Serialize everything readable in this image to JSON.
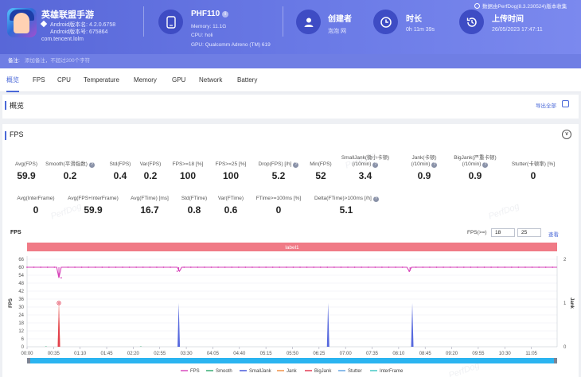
{
  "header": {
    "app_name": "英雄联盟手游",
    "android_version": "Android版本名: 4.2.0.6758",
    "android_code": "Android版本号: 675864",
    "package": "com.tencent.lolm",
    "device_name": "PHF110",
    "device_info_icon": "i",
    "memory": "Memory: 11.1G",
    "cpu": "CPU: holi",
    "gpu": "GPU: Qualcomm Adreno (TM) 619",
    "creator_label": "创建者",
    "creator_value": "泡泡 网",
    "duration_label": "时长",
    "duration_value": "0h 11m 39s",
    "upload_label": "上传时间",
    "upload_value": "26/05/2023 17:47:11",
    "report_note": "数据由PerfDog(8.3.230524)版本收集",
    "accent": "#5867d8"
  },
  "note_bar": {
    "label": "备注:",
    "placeholder": "添加备注，不超过200个字符"
  },
  "tabs": [
    {
      "label": "概览"
    },
    {
      "label": "FPS"
    },
    {
      "label": "CPU"
    },
    {
      "label": "Temperature"
    },
    {
      "label": "Memory"
    },
    {
      "label": "GPU"
    },
    {
      "label": "Network"
    },
    {
      "label": "Battery"
    }
  ],
  "overview": {
    "title": "概览",
    "export_label": "导出全部"
  },
  "fps": {
    "title": "FPS",
    "collapse_icon": "∨",
    "row1": [
      {
        "label": "Avg(FPS)",
        "value": "59.9"
      },
      {
        "label": "Smooth(平滑指数)",
        "value": "0.2",
        "help": true
      },
      {
        "label": "Std(FPS)",
        "value": "0.4"
      },
      {
        "label": "Var(FPS)",
        "value": "0.2"
      },
      {
        "label": "FPS>=18 [%]",
        "value": "100"
      },
      {
        "label": "FPS>=25 [%]",
        "value": "100"
      },
      {
        "label": "Drop(FPS) [/h]",
        "value": "5.2",
        "help": true
      },
      {
        "label": "Min(FPS)",
        "value": "52"
      },
      {
        "label": "SmallJank(微小卡顿)",
        "label2": "(/10min)",
        "value": "3.4",
        "help": true
      },
      {
        "label": "Jank(卡顿)",
        "label2": "(/10min)",
        "value": "0.9",
        "help": true
      },
      {
        "label": "BigJank(严重卡顿)",
        "label2": "(/10min)",
        "value": "0.9",
        "help": true
      },
      {
        "label": "Stutter(卡顿率) [%]",
        "value": "0"
      }
    ],
    "row2": [
      {
        "label": "Avg(InterFrame)",
        "value": "0"
      },
      {
        "label": "Avg(FPS+InterFrame)",
        "value": "59.9"
      },
      {
        "label": "Avg(FTime) [ms]",
        "value": "16.7"
      },
      {
        "label": "Std(FTime)",
        "value": "0.8"
      },
      {
        "label": "Var(FTime)",
        "value": "0.6"
      },
      {
        "label": "FTime>=100ms [%]",
        "value": "0"
      },
      {
        "label": "Delta(FTime)>100ms [/h]",
        "value": "5.1",
        "help": true
      }
    ],
    "threshold_label": "FPS(>=)",
    "threshold_1": "18",
    "threshold_2": "25",
    "threshold_link": "查看",
    "watermark": "PerfDog"
  },
  "chart_data": {
    "type": "line",
    "title": "FPS",
    "band_label": "label1",
    "y_left_label": "FPS",
    "y_right_label": "Jank",
    "y_left_ticks": [
      0,
      6,
      12,
      18,
      24,
      30,
      36,
      42,
      48,
      54,
      60,
      66
    ],
    "y_left_range": [
      0,
      66
    ],
    "y_right_ticks": [
      0,
      1,
      2
    ],
    "y_right_range": [
      0,
      2
    ],
    "x_ticks": [
      "00:00",
      "00:35",
      "01:10",
      "01:45",
      "02:20",
      "02:55",
      "03:30",
      "04:05",
      "04:40",
      "05:15",
      "05:50",
      "06:25",
      "07:00",
      "07:35",
      "08:10",
      "08:45",
      "09:20",
      "09:55",
      "10:30",
      "11:05"
    ],
    "x_range_seconds": [
      0,
      699
    ],
    "grid": true,
    "legend_position": "bottom",
    "series": [
      {
        "name": "FPS",
        "color": "#d63fb8",
        "axis": "left",
        "base": 60,
        "dips": [
          [
            42,
            52
          ],
          [
            200,
            57
          ],
          [
            505,
            57
          ]
        ]
      },
      {
        "name": "Smooth",
        "color": "#2aa86a",
        "axis": "left",
        "spikes": [
          [
            25,
            0.4
          ],
          [
            150,
            0.4
          ]
        ]
      },
      {
        "name": "SmallJank",
        "color": "#3a4fd8",
        "axis": "right",
        "spikes": [
          [
            200,
            1
          ],
          [
            397,
            1
          ],
          [
            508,
            1
          ]
        ]
      },
      {
        "name": "Jank",
        "color": "#f08a3c",
        "axis": "right",
        "spikes": [
          [
            42,
            1
          ]
        ]
      },
      {
        "name": "BigJank",
        "color": "#e0304a",
        "axis": "right",
        "spikes": [
          [
            42,
            1
          ]
        ]
      },
      {
        "name": "Stutter",
        "color": "#5aa0e0",
        "axis": "right",
        "spikes": []
      },
      {
        "name": "InterFrame",
        "color": "#39c5c0",
        "axis": "left",
        "spikes": []
      }
    ]
  }
}
